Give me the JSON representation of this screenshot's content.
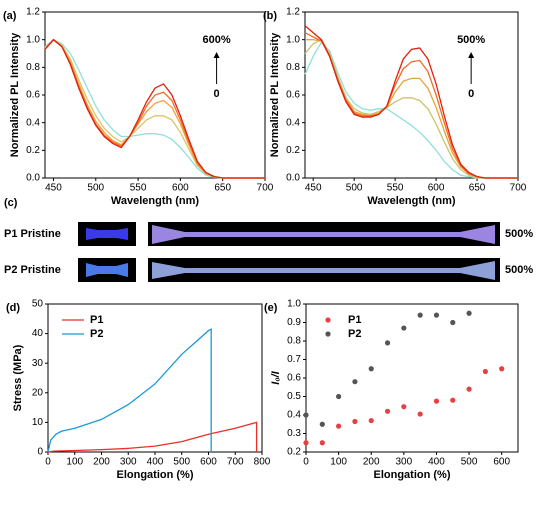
{
  "chart_data": [
    {
      "type": "line",
      "panel_label": "(a)",
      "xlabel": "Wavelength (nm)",
      "ylabel": "Normalized PL Intensity",
      "annotations": [
        "600%",
        "0"
      ],
      "x": [
        440,
        450,
        460,
        470,
        480,
        490,
        500,
        510,
        520,
        530,
        540,
        550,
        560,
        570,
        580,
        590,
        600,
        610,
        620,
        630,
        640,
        650,
        660,
        670,
        680,
        690,
        700
      ],
      "xlim": [
        440,
        700
      ],
      "xticks": [
        450,
        500,
        550,
        600,
        650,
        700
      ],
      "ylim": [
        0,
        1.2
      ],
      "yticks": [
        {
          "value": 0,
          "label": "0.0"
        },
        {
          "value": 0.2,
          "label": "0.2"
        },
        {
          "value": 0.4,
          "label": "0.4"
        },
        {
          "value": 0.6,
          "label": "0.6"
        },
        {
          "value": 0.8,
          "label": "0.8"
        },
        {
          "value": 1.0,
          "label": "1.0"
        },
        {
          "value": 1.2,
          "label": "1.2"
        }
      ],
      "series": [
        {
          "color": "#8fe0dc",
          "values": [
            0.95,
            1.0,
            0.97,
            0.9,
            0.78,
            0.65,
            0.52,
            0.42,
            0.35,
            0.3,
            0.3,
            0.31,
            0.32,
            0.32,
            0.31,
            0.28,
            0.22,
            0.15,
            0.07,
            0.02,
            0.005,
            0,
            0,
            0,
            0,
            0,
            0
          ]
        },
        {
          "color": "#d9c46a",
          "values": [
            0.94,
            1.0,
            0.96,
            0.86,
            0.71,
            0.57,
            0.45,
            0.36,
            0.3,
            0.26,
            0.3,
            0.36,
            0.42,
            0.45,
            0.45,
            0.42,
            0.33,
            0.21,
            0.09,
            0.03,
            0.01,
            0,
            0,
            0,
            0,
            0,
            0
          ]
        },
        {
          "color": "#f2a23a",
          "values": [
            0.93,
            1.0,
            0.95,
            0.84,
            0.68,
            0.53,
            0.41,
            0.33,
            0.27,
            0.24,
            0.3,
            0.39,
            0.48,
            0.54,
            0.56,
            0.51,
            0.39,
            0.24,
            0.1,
            0.03,
            0.01,
            0,
            0,
            0,
            0,
            0,
            0
          ]
        },
        {
          "color": "#f06a28",
          "values": [
            0.93,
            1.0,
            0.95,
            0.83,
            0.66,
            0.51,
            0.39,
            0.31,
            0.26,
            0.23,
            0.3,
            0.4,
            0.52,
            0.6,
            0.62,
            0.56,
            0.42,
            0.26,
            0.11,
            0.04,
            0.01,
            0,
            0,
            0,
            0,
            0,
            0
          ]
        },
        {
          "color": "#e0200f",
          "values": [
            0.93,
            1.0,
            0.95,
            0.82,
            0.65,
            0.5,
            0.38,
            0.3,
            0.25,
            0.22,
            0.3,
            0.42,
            0.55,
            0.65,
            0.68,
            0.6,
            0.45,
            0.28,
            0.12,
            0.04,
            0.01,
            0,
            0,
            0,
            0,
            0,
            0
          ]
        }
      ]
    },
    {
      "type": "line",
      "panel_label": "(b)",
      "xlabel": "Wavelength (nm)",
      "ylabel": "Normalized PL Intensity",
      "annotations": [
        "500%",
        "0"
      ],
      "x": [
        440,
        450,
        460,
        470,
        480,
        490,
        500,
        510,
        520,
        530,
        540,
        550,
        560,
        570,
        580,
        590,
        600,
        610,
        620,
        630,
        640,
        650,
        660,
        670,
        680,
        690,
        700
      ],
      "xlim": [
        440,
        700
      ],
      "xticks": [
        450,
        500,
        550,
        600,
        650,
        700
      ],
      "ylim": [
        0,
        1.2
      ],
      "yticks": [
        {
          "value": 0,
          "label": "0.0"
        },
        {
          "value": 0.2,
          "label": "0.2"
        },
        {
          "value": 0.4,
          "label": "0.4"
        },
        {
          "value": 0.6,
          "label": "0.6"
        },
        {
          "value": 0.8,
          "label": "0.8"
        },
        {
          "value": 1.0,
          "label": "1.0"
        },
        {
          "value": 1.2,
          "label": "1.2"
        }
      ],
      "series": [
        {
          "color": "#8fe0dc",
          "values": [
            0.75,
            0.88,
            0.98,
            0.92,
            0.76,
            0.62,
            0.54,
            0.5,
            0.49,
            0.5,
            0.5,
            0.46,
            0.42,
            0.38,
            0.33,
            0.27,
            0.2,
            0.12,
            0.06,
            0.02,
            0.01,
            0,
            0,
            0,
            0,
            0,
            0
          ]
        },
        {
          "color": "#c9c36e",
          "values": [
            0.9,
            0.97,
            1.0,
            0.9,
            0.73,
            0.58,
            0.5,
            0.47,
            0.46,
            0.48,
            0.51,
            0.55,
            0.58,
            0.58,
            0.56,
            0.5,
            0.39,
            0.26,
            0.14,
            0.06,
            0.02,
            0,
            0,
            0,
            0,
            0,
            0
          ]
        },
        {
          "color": "#e8a43c",
          "values": [
            1.0,
            1.0,
            0.99,
            0.89,
            0.72,
            0.57,
            0.48,
            0.46,
            0.45,
            0.47,
            0.51,
            0.62,
            0.7,
            0.72,
            0.72,
            0.65,
            0.51,
            0.34,
            0.18,
            0.08,
            0.03,
            0.01,
            0,
            0,
            0,
            0,
            0
          ]
        },
        {
          "color": "#f06a28",
          "values": [
            1.05,
            1.02,
            0.99,
            0.88,
            0.71,
            0.56,
            0.47,
            0.45,
            0.45,
            0.46,
            0.52,
            0.67,
            0.79,
            0.84,
            0.85,
            0.77,
            0.6,
            0.4,
            0.21,
            0.09,
            0.03,
            0.01,
            0,
            0,
            0,
            0,
            0
          ]
        },
        {
          "color": "#e0200f",
          "values": [
            1.1,
            1.05,
            1.0,
            0.88,
            0.7,
            0.55,
            0.46,
            0.44,
            0.44,
            0.46,
            0.52,
            0.7,
            0.86,
            0.93,
            0.94,
            0.86,
            0.68,
            0.45,
            0.24,
            0.1,
            0.04,
            0.01,
            0,
            0,
            0,
            0,
            0
          ]
        }
      ]
    },
    {
      "type": "line",
      "panel_label": "(d)",
      "xlabel": "Elongation (%)",
      "ylabel": "Stress (MPa)",
      "legend": "upper left",
      "xlim": [
        0,
        800
      ],
      "xticks": [
        0,
        100,
        200,
        300,
        400,
        500,
        600,
        700,
        800
      ],
      "ylim": [
        0,
        50
      ],
      "yticks": [
        0,
        10,
        20,
        30,
        40,
        50
      ],
      "series": [
        {
          "name": "P1",
          "color": "#e8302a",
          "x": [
            0,
            20,
            100,
            200,
            300,
            400,
            500,
            600,
            700,
            780,
            780
          ],
          "values": [
            0,
            0.3,
            0.5,
            0.8,
            1.2,
            2,
            3.5,
            6,
            8,
            10,
            0
          ]
        },
        {
          "name": "P2",
          "color": "#1a9ad8",
          "x": [
            0,
            10,
            30,
            50,
            100,
            200,
            300,
            400,
            500,
            550,
            600,
            610,
            610
          ],
          "values": [
            0,
            4,
            6,
            7,
            8,
            11,
            16,
            23,
            33,
            37,
            41,
            41.5,
            0
          ]
        }
      ]
    },
    {
      "type": "scatter",
      "panel_label": "(e)",
      "xlabel": "Elongation (%)",
      "ylabel": "I₀/I",
      "legend": "upper left",
      "xlim": [
        0,
        650
      ],
      "xticks": [
        0,
        100,
        200,
        300,
        400,
        500,
        600
      ],
      "ylim": [
        0.2,
        1.0
      ],
      "yticks": [
        0.2,
        0.3,
        0.4,
        0.5,
        0.6,
        0.7,
        0.8,
        0.9,
        {
          "value": 1.0,
          "label": "1.0"
        }
      ],
      "series": [
        {
          "name": "P1",
          "color": "#e84040",
          "x": [
            0,
            50,
            100,
            150,
            200,
            250,
            300,
            350,
            400,
            450,
            500,
            550,
            600
          ],
          "values": [
            0.25,
            0.25,
            0.34,
            0.365,
            0.37,
            0.42,
            0.445,
            0.405,
            0.475,
            0.48,
            0.54,
            0.635,
            0.65
          ]
        },
        {
          "name": "P2",
          "color": "#555555",
          "x": [
            0,
            50,
            100,
            150,
            200,
            250,
            300,
            350,
            400,
            450,
            500
          ],
          "values": [
            0.4,
            0.35,
            0.5,
            0.58,
            0.65,
            0.79,
            0.87,
            0.94,
            0.94,
            0.9,
            0.95
          ]
        }
      ]
    }
  ],
  "photo_panel": {
    "label": "(c)",
    "rows": [
      {
        "name": "P1 Pristine",
        "strain": "500%"
      },
      {
        "name": "P2 Pristine",
        "strain": "500%"
      }
    ]
  }
}
